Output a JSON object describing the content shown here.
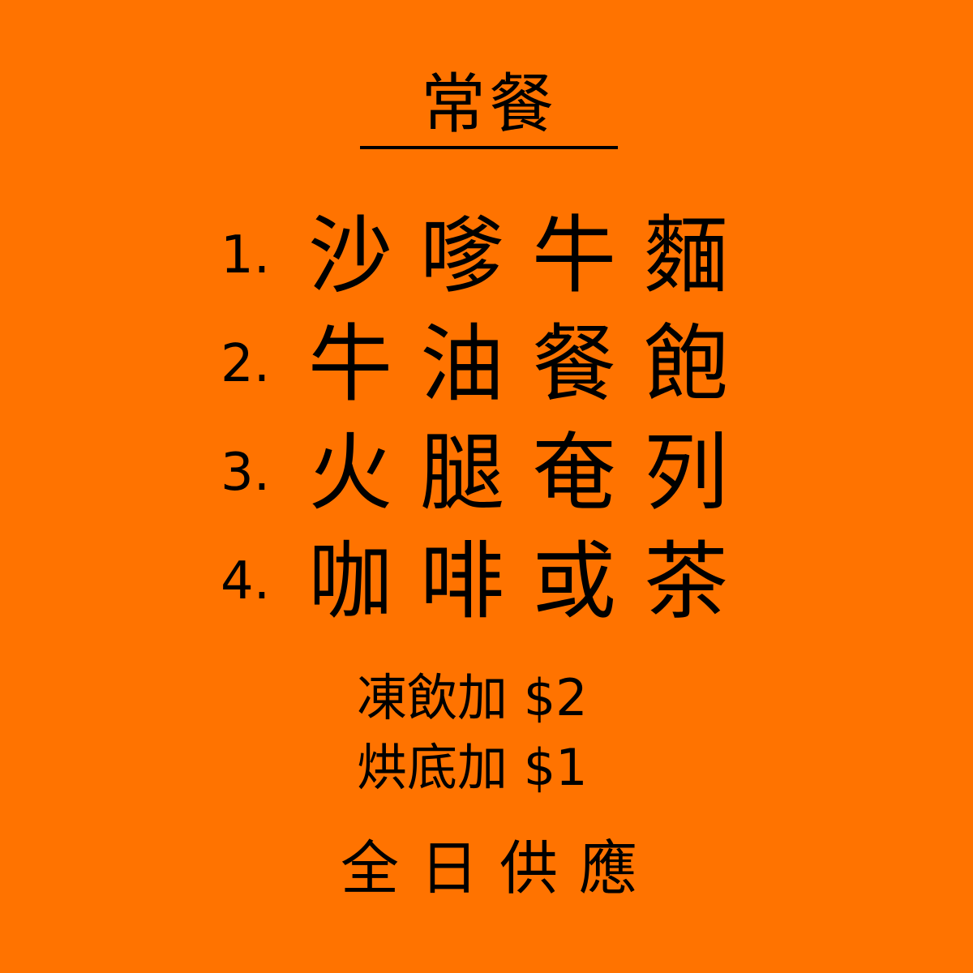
{
  "title": "常餐",
  "items": [
    {
      "num": "1.",
      "name": "沙嗲牛麵"
    },
    {
      "num": "2.",
      "name": "牛油餐飽"
    },
    {
      "num": "3.",
      "name": "火腿奄列"
    },
    {
      "num": "4.",
      "name": "咖啡或茶"
    }
  ],
  "extras": [
    {
      "text": "凍飲加 $2"
    },
    {
      "text": "烘底加 $1"
    }
  ],
  "footer": "全日供應",
  "colors": {
    "background": "#ff7300",
    "text": "#000000"
  }
}
